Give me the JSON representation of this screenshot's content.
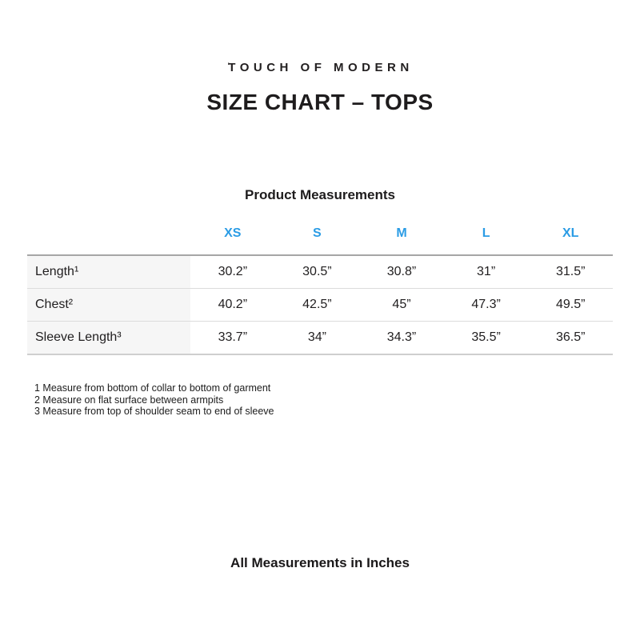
{
  "brand": {
    "logo_mark": "ˈ",
    "logo_text": "TOUCH OF MODERN"
  },
  "title": "SIZE CHART – TOPS",
  "measurements": {
    "caption": "Product Measurements",
    "size_headers": [
      "XS",
      "S",
      "M",
      "L",
      "XL"
    ],
    "rows": [
      {
        "label": "Length¹",
        "values": [
          "30.2”",
          "30.5”",
          "30.8”",
          "31”",
          "31.5”"
        ]
      },
      {
        "label": "Chest²",
        "values": [
          "40.2”",
          "42.5”",
          "45”",
          "47.3”",
          "49.5”"
        ]
      },
      {
        "label": "Sleeve Length³",
        "values": [
          "33.7”",
          "34”",
          "34.3”",
          "35.5”",
          "36.5”"
        ]
      }
    ]
  },
  "footnotes": [
    "1 Measure from bottom of collar to bottom of garment",
    "2 Measure on flat surface between armpits",
    "3 Measure from top of shoulder seam to end of sleeve"
  ],
  "footer_note": "All Measurements in Inches",
  "colors": {
    "accent_blue": "#2b9ce5",
    "text": "#221f20",
    "label_column_bg": "#f6f6f6",
    "table_top_border": "#a6a6a6",
    "row_divider": "#dcdcdc"
  }
}
